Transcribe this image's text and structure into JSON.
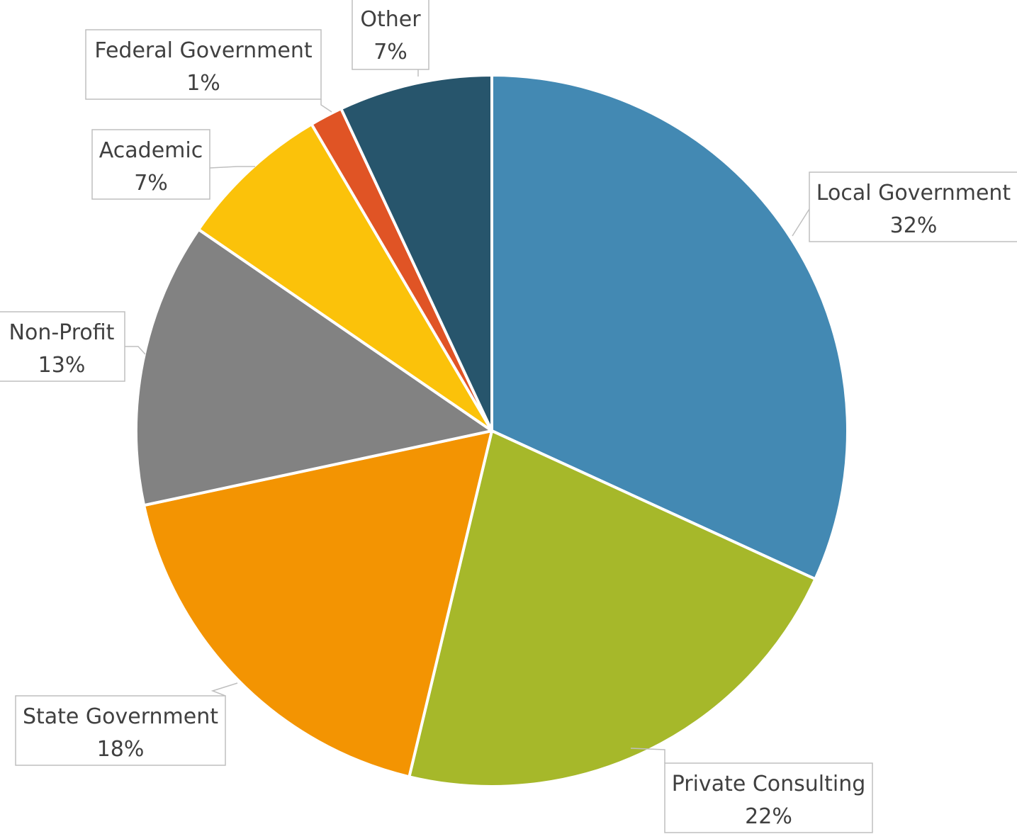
{
  "chart_data": {
    "type": "pie",
    "title": "",
    "start_angle_deg": 0,
    "direction": "clockwise",
    "legend": "none",
    "data_labels": "category-and-percent-callouts",
    "slices": [
      {
        "name": "Local Government",
        "value": 32,
        "label": "32%",
        "color": "#4389B3"
      },
      {
        "name": "Private Consulting",
        "value": 22,
        "label": "22%",
        "color": "#A6B82A"
      },
      {
        "name": "State Government",
        "value": 18,
        "label": "18%",
        "color": "#F39402"
      },
      {
        "name": "Non-Profit",
        "value": 13,
        "label": "13%",
        "color": "#828282"
      },
      {
        "name": "Academic",
        "value": 7,
        "label": "7%",
        "color": "#FBC20A"
      },
      {
        "name": "Federal Government",
        "value": 1.5,
        "label": "1%",
        "color": "#E05425"
      },
      {
        "name": "Other",
        "value": 7,
        "label": "7%",
        "color": "#27556C"
      }
    ]
  }
}
